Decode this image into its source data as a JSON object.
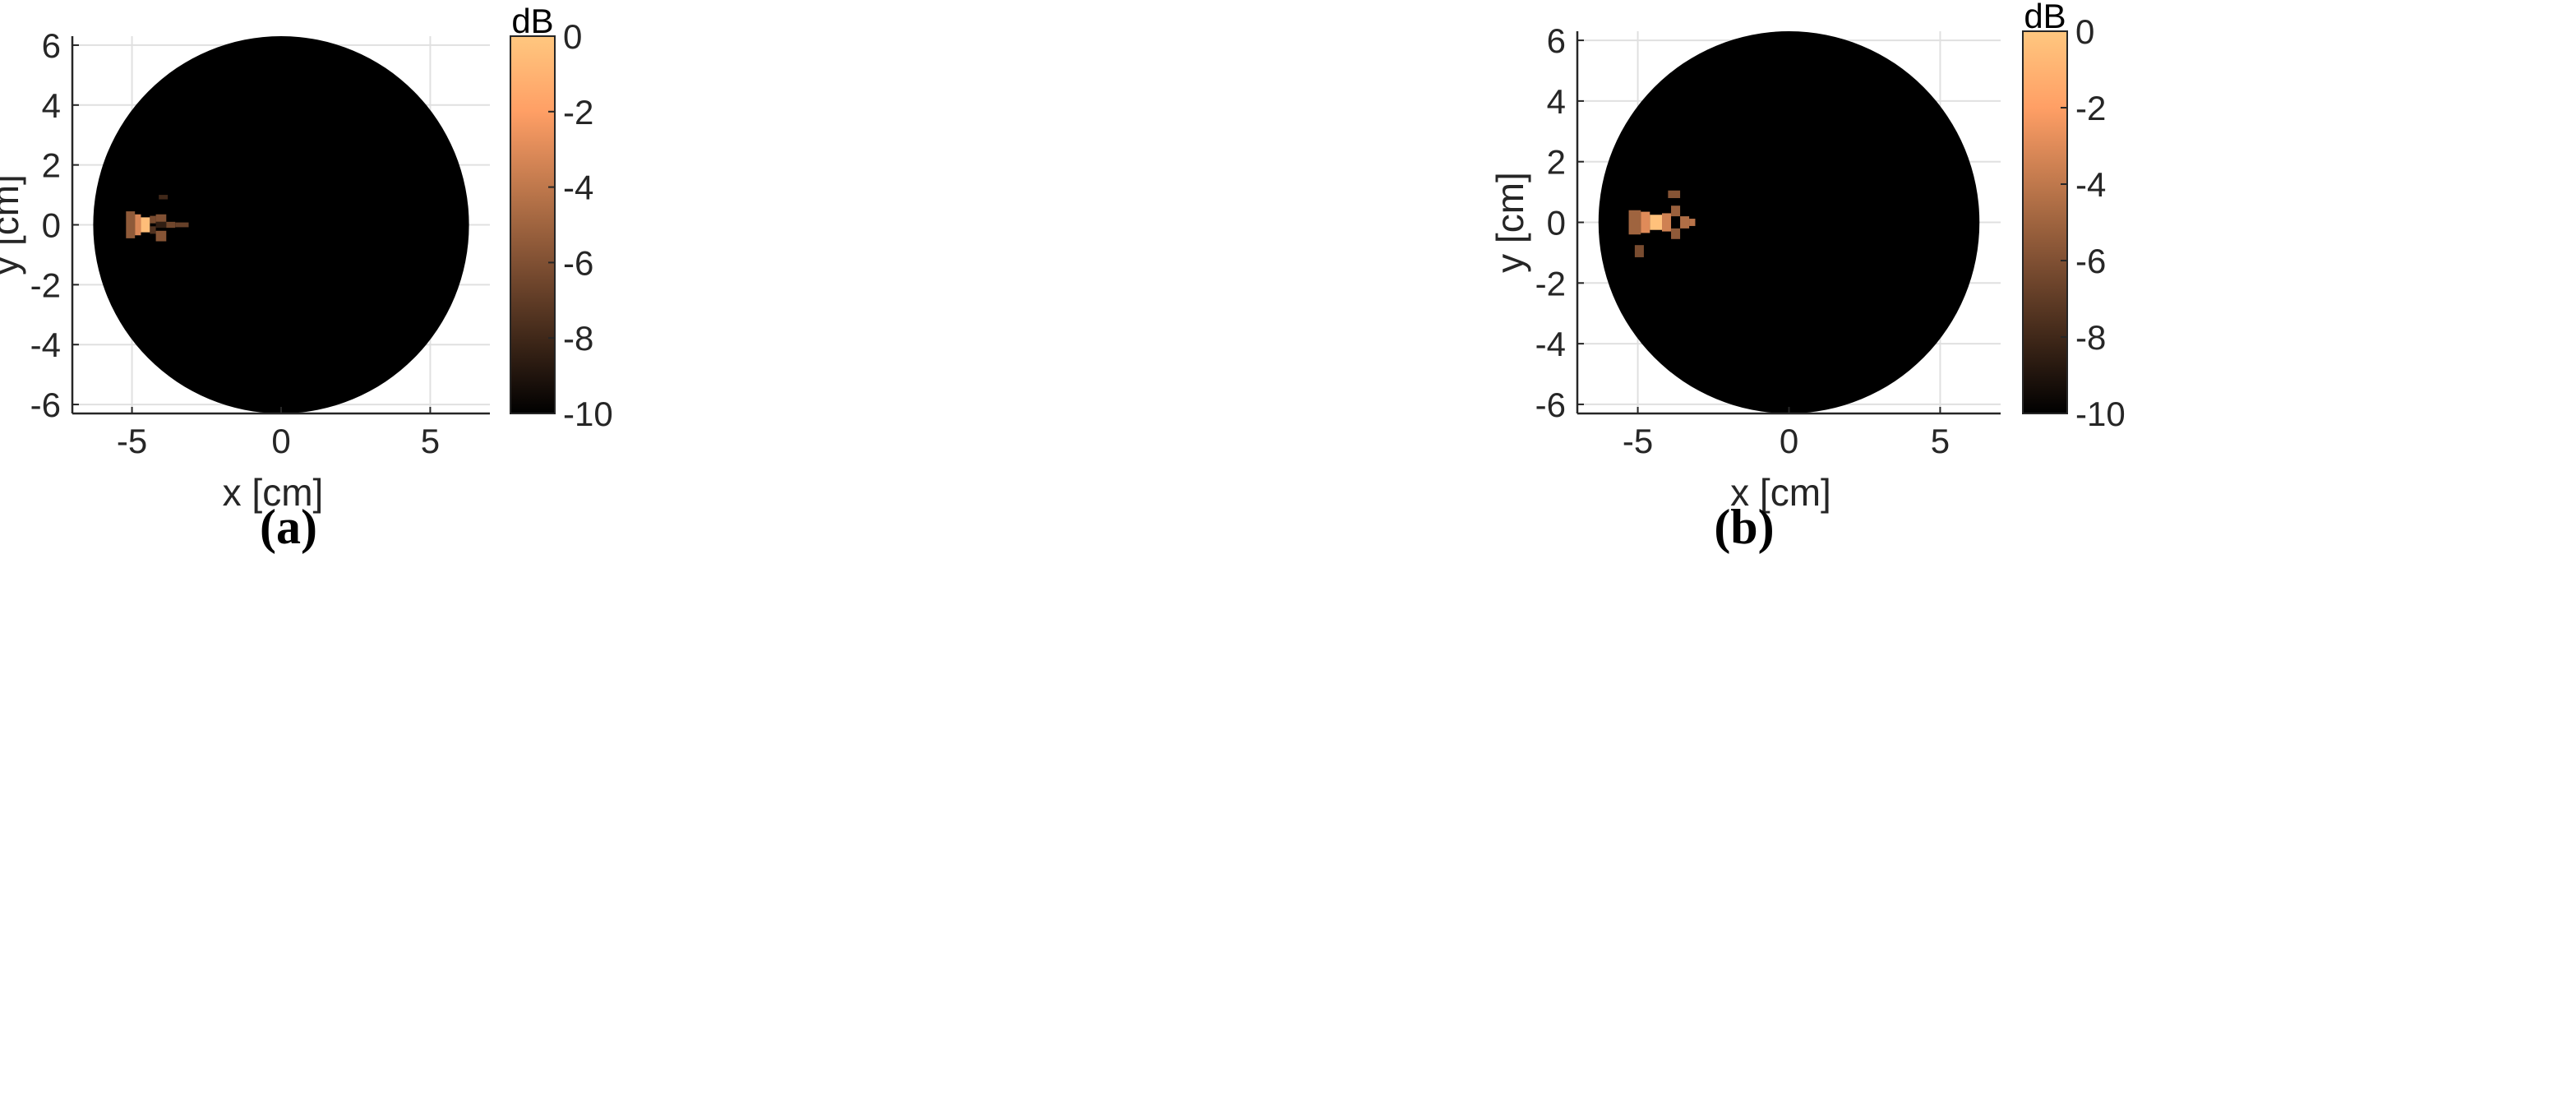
{
  "chart_data": [
    {
      "type": "heatmap",
      "panel_label": "(a)",
      "xlabel": "x [cm]",
      "ylabel": "y [cm]",
      "xlim": [
        -7,
        7
      ],
      "ylim": [
        -6.3,
        6.3
      ],
      "xticks": [
        -5,
        0,
        5
      ],
      "yticks": [
        -6,
        -4,
        -2,
        0,
        2,
        4,
        6
      ],
      "grid": true,
      "colormap": "copper",
      "colorbar": {
        "label": "dB",
        "range": [
          -10,
          0
        ],
        "ticks": [
          0,
          -2,
          -4,
          -6,
          -8,
          -10
        ]
      },
      "domain_circle": {
        "center": [
          0,
          0
        ],
        "radius_cm": 6.3
      },
      "background_db": -10,
      "hotspot": {
        "center": [
          -4.5,
          0
        ]
      },
      "cells": [
        {
          "x": [
            -5.2,
            -4.9
          ],
          "y": [
            -0.45,
            0.45
          ],
          "db": -5.5
        },
        {
          "x": [
            -4.9,
            -4.7
          ],
          "y": [
            -0.35,
            0.35
          ],
          "db": -3.2
        },
        {
          "x": [
            -4.7,
            -4.4
          ],
          "y": [
            -0.25,
            0.25
          ],
          "db": -0.5
        },
        {
          "x": [
            -4.4,
            -4.2
          ],
          "y": [
            0.05,
            0.3
          ],
          "db": -6.2
        },
        {
          "x": [
            -4.4,
            -4.2
          ],
          "y": [
            -0.3,
            -0.05
          ],
          "db": -7.5
        },
        {
          "x": [
            -4.2,
            -3.85
          ],
          "y": [
            0.1,
            0.35
          ],
          "db": -6.0
        },
        {
          "x": [
            -4.2,
            -3.85
          ],
          "y": [
            -0.1,
            0.1
          ],
          "db": -8.5
        },
        {
          "x": [
            -4.2,
            -3.85
          ],
          "y": [
            -0.55,
            -0.2
          ],
          "db": -5.8
        },
        {
          "x": [
            -3.85,
            -3.55
          ],
          "y": [
            -0.1,
            0.1
          ],
          "db": -6.5
        },
        {
          "x": [
            -3.55,
            -3.1
          ],
          "y": [
            -0.08,
            0.08
          ],
          "db": -6.8
        },
        {
          "x": [
            -4.1,
            -3.8
          ],
          "y": [
            0.85,
            1.0
          ],
          "db": -8.0
        }
      ]
    },
    {
      "type": "heatmap",
      "panel_label": "(b)",
      "xlabel": "x [cm]",
      "ylabel": "y [cm]",
      "xlim": [
        -7,
        7
      ],
      "ylim": [
        -6.3,
        6.3
      ],
      "xticks": [
        -5,
        0,
        5
      ],
      "yticks": [
        -6,
        -4,
        -2,
        0,
        2,
        4,
        6
      ],
      "grid": true,
      "colormap": "copper",
      "colorbar": {
        "label": "dB",
        "range": [
          -10,
          0
        ],
        "ticks": [
          0,
          -2,
          -4,
          -6,
          -8,
          -10
        ]
      },
      "domain_circle": {
        "center": [
          0,
          0
        ],
        "radius_cm": 6.3
      },
      "background_db": -10,
      "hotspot": {
        "center": [
          -4.5,
          0
        ]
      },
      "cells": [
        {
          "x": [
            -5.3,
            -4.9
          ],
          "y": [
            -0.4,
            0.4
          ],
          "db": -5.0
        },
        {
          "x": [
            -4.9,
            -4.6
          ],
          "y": [
            -0.35,
            0.35
          ],
          "db": -3.0
        },
        {
          "x": [
            -4.6,
            -4.2
          ],
          "y": [
            -0.25,
            0.25
          ],
          "db": -0.3
        },
        {
          "x": [
            -4.2,
            -3.9
          ],
          "y": [
            -0.3,
            0.3
          ],
          "db": -3.5
        },
        {
          "x": [
            -3.9,
            -3.6
          ],
          "y": [
            0.2,
            0.55
          ],
          "db": -5.2
        },
        {
          "x": [
            -3.9,
            -3.6
          ],
          "y": [
            -0.55,
            -0.2
          ],
          "db": -5.5
        },
        {
          "x": [
            -3.6,
            -3.3
          ],
          "y": [
            -0.2,
            0.2
          ],
          "db": -4.5
        },
        {
          "x": [
            -3.3,
            -3.1
          ],
          "y": [
            -0.12,
            0.12
          ],
          "db": -4.2
        },
        {
          "x": [
            -4.0,
            -3.6
          ],
          "y": [
            0.8,
            1.05
          ],
          "db": -5.8
        },
        {
          "x": [
            -5.1,
            -4.8
          ],
          "y": [
            -1.15,
            -0.75
          ],
          "db": -6.2
        }
      ]
    }
  ]
}
